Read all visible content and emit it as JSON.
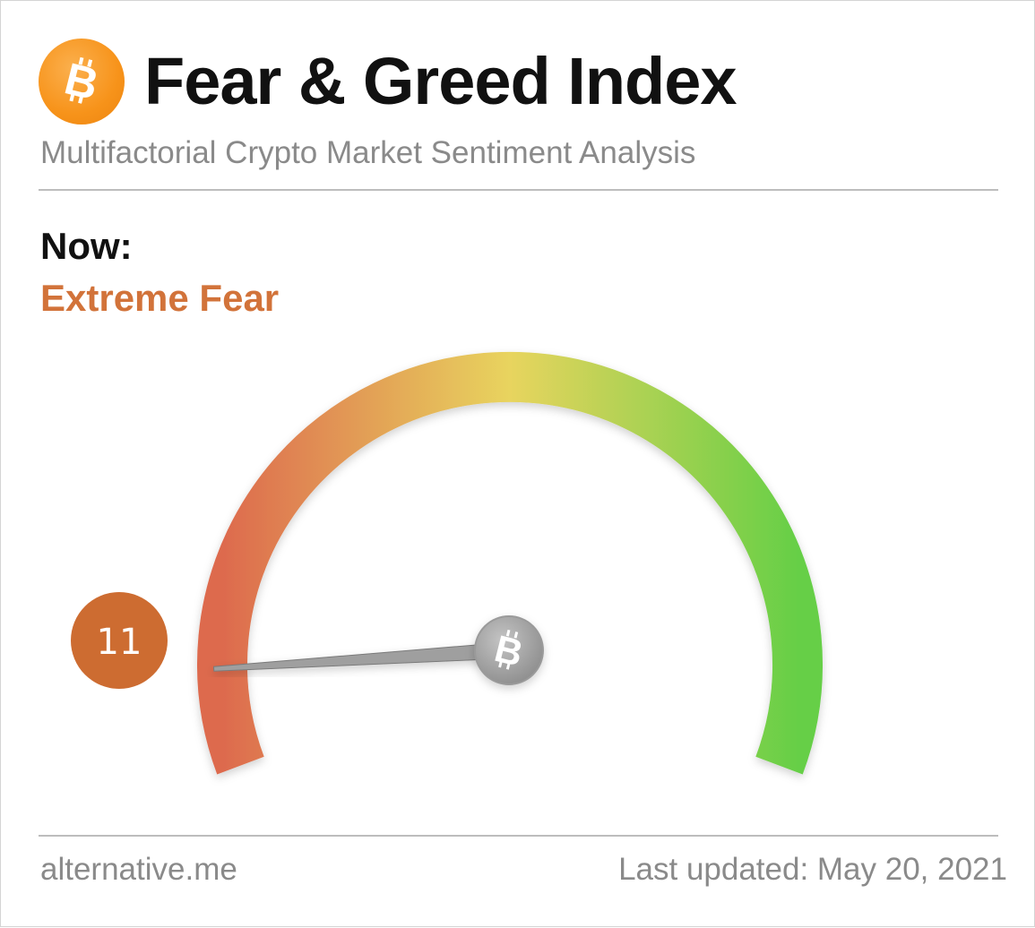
{
  "header": {
    "title": "Fear & Greed Index",
    "subtitle": "Multifactorial Crypto Market Sentiment Analysis",
    "logo_icon": "bitcoin-icon",
    "logo_color": "#f7931a"
  },
  "now": {
    "label": "Now:",
    "classification": "Extreme Fear",
    "classification_color": "#d2733a"
  },
  "gauge": {
    "value": 11,
    "min": 0,
    "max": 100,
    "badge_color": "#cd6c31",
    "needle_icon": "bitcoin-icon",
    "gradient_colors": [
      "#dd6a4e",
      "#e8c85c",
      "#6ccf4a"
    ]
  },
  "footer": {
    "source": "alternative.me",
    "last_updated": "Last updated: May 20, 2021"
  }
}
